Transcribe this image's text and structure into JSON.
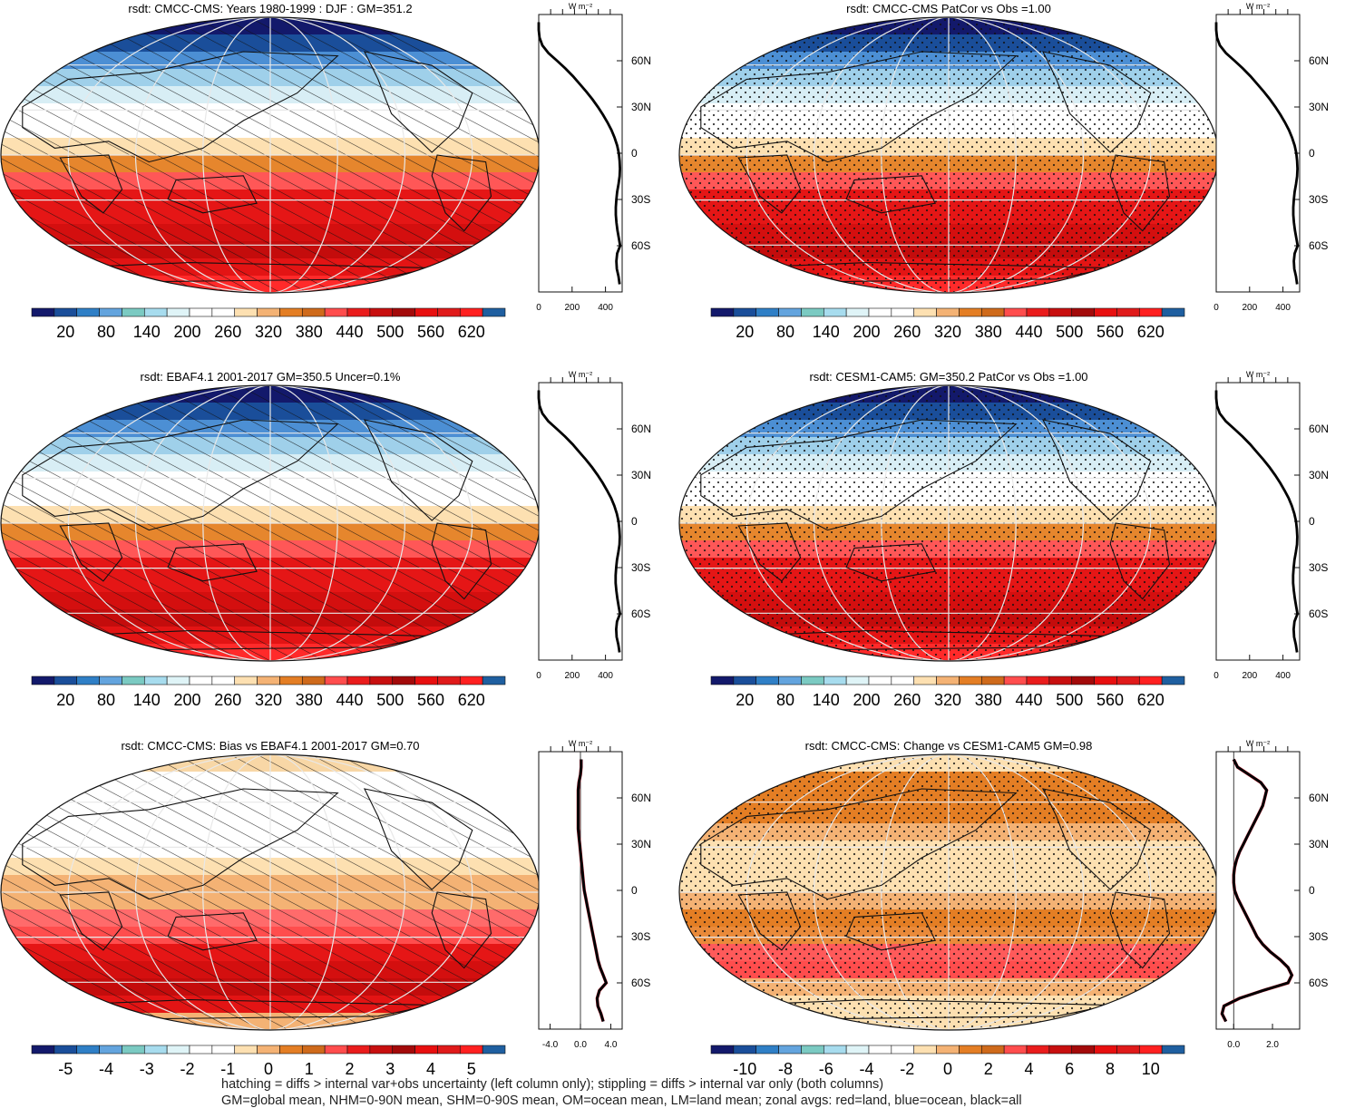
{
  "footnotes": [
    "hatching = diffs > internal var+obs uncertainty (left column only); stippling = diffs > internal var only (both columns)",
    "GM=global mean, NHM=0-90N mean, SHM=0-90S mean, OM=ocean mean, LM=land mean; zonal avgs: red=land, blue=ocean, black=all"
  ],
  "zonal_units": "W m⁻²",
  "colorbar_colors": [
    "#13196b",
    "#1a4e9a",
    "#2f7fc6",
    "#63a4de",
    "#7bcac2",
    "#a7dcee",
    "#dff4f7",
    "#ffffff",
    "#ffffff",
    "#fde0b1",
    "#f4b274",
    "#e47e24",
    "#cf6a1b",
    "#ff4d4d",
    "#ea1c1c",
    "#c80f0f",
    "#a30a0a",
    "#e80f0f",
    "#e01a1a",
    "#ff2020",
    "#1f5fa0"
  ],
  "chart_data": [
    {
      "type": "heatmap",
      "panel": "row1-left",
      "title": "rsdt: CMCC-CMS: Years 1980-1999 : DJF : GM=351.2",
      "overlay": "hatching",
      "colorbar_ticks": [
        "20",
        "80",
        "140",
        "200",
        "260",
        "320",
        "380",
        "440",
        "500",
        "560",
        "620"
      ],
      "lat_ticks": [
        "60N",
        "30N",
        "0",
        "30S",
        "60S"
      ],
      "zonal_mean": {
        "units": "W m-2",
        "x_ticks": [
          "0",
          "200",
          "400"
        ],
        "xlim": [
          0,
          500
        ],
        "lat": [
          85,
          80,
          75,
          70,
          65,
          60,
          55,
          50,
          45,
          40,
          35,
          30,
          25,
          20,
          15,
          10,
          5,
          0,
          -5,
          -10,
          -15,
          -20,
          -25,
          -30,
          -35,
          -40,
          -45,
          -50,
          -55,
          -60,
          -65,
          -70,
          -75,
          -80,
          -85
        ],
        "values": [
          0,
          0,
          5,
          22,
          58,
          110,
          160,
          205,
          245,
          285,
          322,
          355,
          385,
          412,
          436,
          455,
          470,
          480,
          485,
          487,
          485,
          478,
          470,
          465,
          462,
          462,
          466,
          472,
          480,
          488,
          470,
          465,
          468,
          478,
          485
        ]
      }
    },
    {
      "type": "heatmap",
      "panel": "row1-right",
      "title": "rsdt: CMCC-CMS PatCor vs Obs =1.00",
      "overlay": "stippling",
      "colorbar_ticks": [
        "20",
        "80",
        "140",
        "200",
        "260",
        "320",
        "380",
        "440",
        "500",
        "560",
        "620"
      ],
      "lat_ticks": [
        "60N",
        "30N",
        "0",
        "30S",
        "60S"
      ],
      "zonal_mean": {
        "units": "W m-2",
        "x_ticks": [
          "0",
          "200",
          "400"
        ],
        "xlim": [
          0,
          500
        ],
        "lat": [
          85,
          80,
          75,
          70,
          65,
          60,
          55,
          50,
          45,
          40,
          35,
          30,
          25,
          20,
          15,
          10,
          5,
          0,
          -5,
          -10,
          -15,
          -20,
          -25,
          -30,
          -35,
          -40,
          -45,
          -50,
          -55,
          -60,
          -65,
          -70,
          -75,
          -80,
          -85
        ],
        "values": [
          0,
          0,
          5,
          22,
          58,
          110,
          160,
          205,
          245,
          285,
          322,
          355,
          385,
          412,
          436,
          455,
          470,
          480,
          485,
          487,
          485,
          478,
          470,
          465,
          462,
          462,
          466,
          472,
          480,
          488,
          470,
          465,
          468,
          478,
          485
        ]
      }
    },
    {
      "type": "heatmap",
      "panel": "row2-left",
      "title": "rsdt: EBAF4.1 2001-2017 GM=350.5 Uncer=0.1%",
      "overlay": "hatching",
      "colorbar_ticks": [
        "20",
        "80",
        "140",
        "200",
        "260",
        "320",
        "380",
        "440",
        "500",
        "560",
        "620"
      ],
      "lat_ticks": [
        "60N",
        "30N",
        "0",
        "30S",
        "60S"
      ],
      "zonal_mean": {
        "units": "W m-2",
        "x_ticks": [
          "0",
          "200",
          "400"
        ],
        "xlim": [
          0,
          500
        ],
        "lat": [
          85,
          80,
          75,
          70,
          65,
          60,
          55,
          50,
          45,
          40,
          35,
          30,
          25,
          20,
          15,
          10,
          5,
          0,
          -5,
          -10,
          -15,
          -20,
          -25,
          -30,
          -35,
          -40,
          -45,
          -50,
          -55,
          -60,
          -65,
          -70,
          -75,
          -80,
          -85
        ],
        "values": [
          0,
          0,
          5,
          22,
          57,
          108,
          158,
          203,
          243,
          283,
          320,
          353,
          383,
          410,
          434,
          453,
          468,
          478,
          483,
          486,
          484,
          477,
          469,
          464,
          461,
          461,
          465,
          471,
          479,
          487,
          469,
          464,
          467,
          477,
          484
        ]
      }
    },
    {
      "type": "heatmap",
      "panel": "row2-right",
      "title": "rsdt: CESM1-CAM5: GM=350.2 PatCor vs Obs =1.00",
      "overlay": "stippling",
      "colorbar_ticks": [
        "20",
        "80",
        "140",
        "200",
        "260",
        "320",
        "380",
        "440",
        "500",
        "560",
        "620"
      ],
      "lat_ticks": [
        "60N",
        "30N",
        "0",
        "30S",
        "60S"
      ],
      "zonal_mean": {
        "units": "W m-2",
        "x_ticks": [
          "0",
          "200",
          "400"
        ],
        "xlim": [
          0,
          500
        ],
        "lat": [
          85,
          80,
          75,
          70,
          65,
          60,
          55,
          50,
          45,
          40,
          35,
          30,
          25,
          20,
          15,
          10,
          5,
          0,
          -5,
          -10,
          -15,
          -20,
          -25,
          -30,
          -35,
          -40,
          -45,
          -50,
          -55,
          -60,
          -65,
          -70,
          -75,
          -80,
          -85
        ],
        "values": [
          0,
          0,
          5,
          21,
          57,
          108,
          158,
          203,
          243,
          283,
          320,
          353,
          383,
          410,
          434,
          453,
          468,
          478,
          483,
          486,
          484,
          477,
          469,
          464,
          461,
          461,
          465,
          471,
          479,
          487,
          469,
          464,
          467,
          477,
          484
        ]
      }
    },
    {
      "type": "heatmap",
      "panel": "row3-left",
      "title": "rsdt: CMCC-CMS: Bias vs EBAF4.1 2001-2017 GM=0.70",
      "overlay": "hatching",
      "colorbar_ticks": [
        "-5",
        "-4",
        "-3",
        "-2",
        "-1",
        "0",
        "1",
        "2",
        "3",
        "4",
        "5"
      ],
      "lat_ticks": [
        "60N",
        "30N",
        "0",
        "30S",
        "60S"
      ],
      "zonal_mean": {
        "units": "W m-2",
        "x_ticks": [
          "-4.0",
          "0.0",
          "4.0"
        ],
        "xlim": [
          -5.5,
          5.5
        ],
        "lat": [
          85,
          80,
          75,
          70,
          65,
          60,
          55,
          50,
          45,
          40,
          35,
          30,
          25,
          20,
          15,
          10,
          5,
          0,
          -5,
          -10,
          -15,
          -20,
          -25,
          -30,
          -35,
          -40,
          -45,
          -50,
          -55,
          -60,
          -65,
          -70,
          -75,
          -80,
          -85
        ],
        "values": [
          0.1,
          0.1,
          0.0,
          -0.2,
          -0.3,
          -0.3,
          -0.3,
          -0.3,
          -0.3,
          -0.3,
          -0.2,
          -0.1,
          0.0,
          0.1,
          0.2,
          0.3,
          0.4,
          0.5,
          0.7,
          0.9,
          1.1,
          1.3,
          1.5,
          1.7,
          1.9,
          2.1,
          2.3,
          2.6,
          3.0,
          3.4,
          2.5,
          2.2,
          2.3,
          2.7,
          3.0
        ]
      }
    },
    {
      "type": "heatmap",
      "panel": "row3-right",
      "title": "rsdt: CMCC-CMS: Change vs CESM1-CAM5 GM=0.98",
      "overlay": "stippling",
      "colorbar_ticks": [
        "-10",
        "-8",
        "-6",
        "-4",
        "-2",
        "0",
        "2",
        "4",
        "6",
        "8",
        "10"
      ],
      "lat_ticks": [
        "60N",
        "30N",
        "0",
        "30S",
        "60S"
      ],
      "zonal_mean": {
        "units": "W m-2",
        "x_ticks": [
          "0.0",
          "2.0"
        ],
        "xlim": [
          -0.9,
          3.4
        ],
        "lat": [
          85,
          80,
          75,
          70,
          65,
          60,
          55,
          50,
          45,
          40,
          35,
          30,
          25,
          20,
          15,
          10,
          5,
          0,
          -5,
          -10,
          -15,
          -20,
          -25,
          -30,
          -35,
          -40,
          -45,
          -50,
          -55,
          -60,
          -65,
          -70,
          -75,
          -80,
          -85
        ],
        "values": [
          0.0,
          0.2,
          0.8,
          1.4,
          1.7,
          1.6,
          1.5,
          1.3,
          1.1,
          0.9,
          0.7,
          0.5,
          0.3,
          0.15,
          0.05,
          0.0,
          0.0,
          0.05,
          0.2,
          0.4,
          0.6,
          0.8,
          1.0,
          1.2,
          1.5,
          1.9,
          2.4,
          2.8,
          3.0,
          2.8,
          1.5,
          0.3,
          -0.5,
          -0.6,
          -0.4
        ]
      }
    }
  ]
}
